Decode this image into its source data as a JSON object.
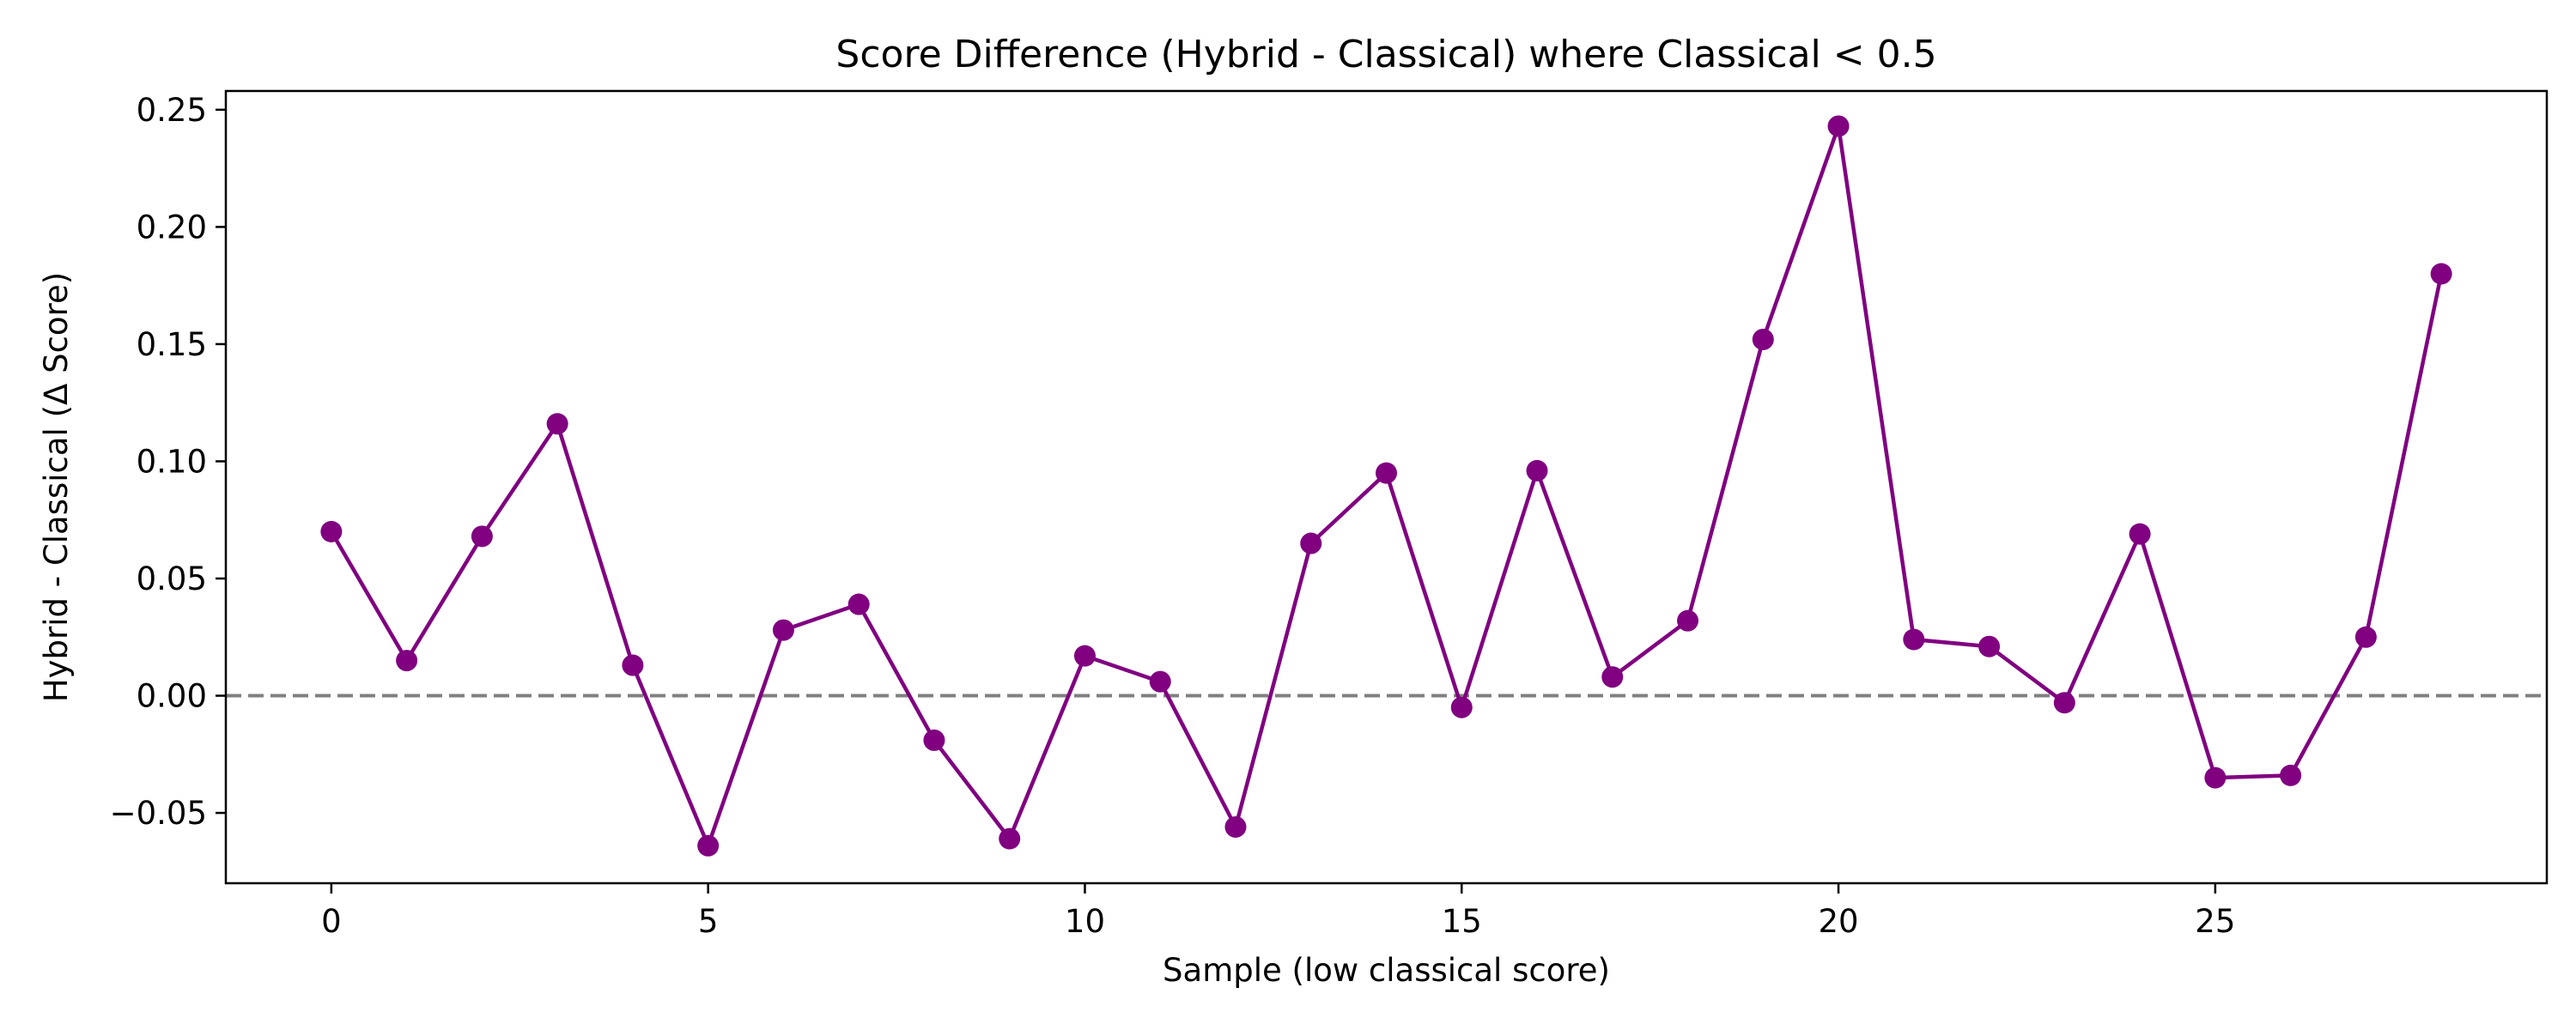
{
  "chart_data": {
    "type": "line",
    "title": "Score Difference (Hybrid - Classical) where Classical < 0.5",
    "xlabel": "Sample (low classical score)",
    "ylabel": "Hybrid - Classical (Δ Score)",
    "xlim": [
      -1.4,
      29.4
    ],
    "ylim": [
      -0.08,
      0.258
    ],
    "xticks": [
      0,
      5,
      10,
      15,
      20,
      25
    ],
    "xtick_labels": [
      "0",
      "5",
      "10",
      "15",
      "20",
      "25"
    ],
    "yticks": [
      -0.05,
      0,
      0.05,
      0.1,
      0.15,
      0.2,
      0.25
    ],
    "ytick_labels": [
      "−0.05",
      "0.00",
      "0.05",
      "0.10",
      "0.15",
      "0.20",
      "0.25"
    ],
    "grid": false,
    "reference_line": {
      "y": 0,
      "style": "dashed",
      "color": "#808080"
    },
    "series": [
      {
        "color": "#800080",
        "marker": "circle",
        "x": [
          0,
          1,
          2,
          3,
          4,
          5,
          6,
          7,
          8,
          9,
          10,
          11,
          12,
          13,
          14,
          15,
          16,
          17,
          18,
          19,
          20,
          21,
          22,
          23,
          24,
          25,
          26,
          27,
          28
        ],
        "y": [
          0.07,
          0.015,
          0.068,
          0.116,
          0.013,
          -0.064,
          0.028,
          0.039,
          -0.019,
          -0.061,
          0.017,
          0.006,
          -0.056,
          0.065,
          0.095,
          -0.005,
          0.096,
          0.008,
          0.032,
          0.152,
          0.243,
          0.024,
          0.021,
          -0.003,
          0.069,
          -0.035,
          -0.034,
          0.025,
          0.18
        ]
      }
    ]
  }
}
